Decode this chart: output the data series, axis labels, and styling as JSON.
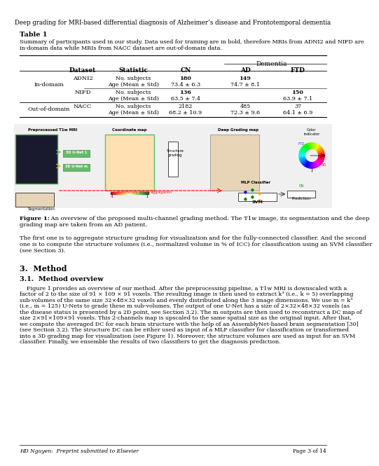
{
  "title": "Deep grading for MRI-based differential diagnosis of Alzheimer’s disease and Frontotemporal dementia",
  "table_title": "Table 1",
  "table_caption": "Summary of participants used in our study. Data used for training are in bold, therefore MRIs from ADNI2 and NIFD are\nin-domain data while MRIs from NACC dataset are out-of-domain data.",
  "col_headers": [
    "Dataset",
    "Statistic",
    "CN",
    "AD",
    "FTD"
  ],
  "dementia_header": "Dementia",
  "rows": [
    {
      "group": "In-domain",
      "dataset": "ADNI2",
      "stat1": "No. subjects",
      "stat2": "Age (Mean ± Std)",
      "cn1": "180",
      "cn2": "73.4 ± 6.3",
      "ad1": "149",
      "ad2": "74.7 ± 8.1",
      "ftd1": "",
      "ftd2": "",
      "bold_cn1": true,
      "bold_ad1": true,
      "bold_ftd1": false
    },
    {
      "group": "In-domain",
      "dataset": "NIFD",
      "stat1": "No. subjects",
      "stat2": "Age (Mean ± Std)",
      "cn1": "136",
      "cn2": "63.5 ± 7.4",
      "ad1": "",
      "ad2": "",
      "ftd1": "150",
      "ftd2": "63.9 ± 7.1",
      "bold_cn1": true,
      "bold_ad1": false,
      "bold_ftd1": true
    },
    {
      "group": "Out-of-domain",
      "dataset": "NACC",
      "stat1": "No. subjects",
      "stat2": "Age (Mean ± Std)",
      "cn1": "2182",
      "cn2": "68.2 ± 10.9",
      "ad1": "485",
      "ad2": "72.3 ± 9.6",
      "ftd1": "37",
      "ftd2": "64.1 ± 6.9",
      "bold_cn1": false,
      "bold_ad1": false,
      "bold_ftd1": false
    }
  ],
  "figure_caption": "Figure 1: An overview of the proposed multi-channel grading method. The T1w image, its segmentation and the deep\ngrading map are taken from an AD patient.",
  "para1": "The first one is to aggregate structure grading for visualization and for the fully-connected classifier. And the second\none is to compute the structure volumes (i.e., normalized volume in % of ICC) for classification using an SVM classifier\n(see Section 3).",
  "section_header": "3.  Method",
  "subsection_header": "3.1.  Method overview",
  "para2": "    Figure 1 provides an overview of our method. After the preprocessing pipeline, a T1w MRI is downscaled with a\nfactor of 2 to the size of 91 × 109 × 91 voxels. The resulting image is then used to extract k³ (i.e., k = 5) overlapping\nsub-volumes of the same size 32×48×32 voxels and evenly distributed along the 3 image dimensions. We use m = k³\n(i.e., m = 125) U-Nets to grade these m sub-volumes. The output of one U-Net has a size of 2×32×48×32 voxels (as\nthe disease status is presented by a 2D point, see Section 3.2). The m outputs are then used to reconstruct a DC map of\nsize 2×91×109×91 voxels. This 2-channels map is upscaled to the same spatial size as the original input. After that,\nwe compute the averaged DC for each brain structure with the help of an AssemblyNet-based brain segmentation [30]\n(see Section 3.2). The structure DC can be either used as input of a MLP classifier for classification or transformed\ninto a 3D grading map for visualization (see Figure 1). Moreover, the structure volumes are used as input for an SVM\nclassifier. Finally, we ensemble the results of two classifiers to get the diagnosis prediction.",
  "footer_left": "HD Nguyen:  Preprint submitted to Elsevier",
  "footer_right": "Page 3 of 14",
  "bg_color": "#ffffff",
  "text_color": "#000000",
  "figure_image_placeholder": true
}
